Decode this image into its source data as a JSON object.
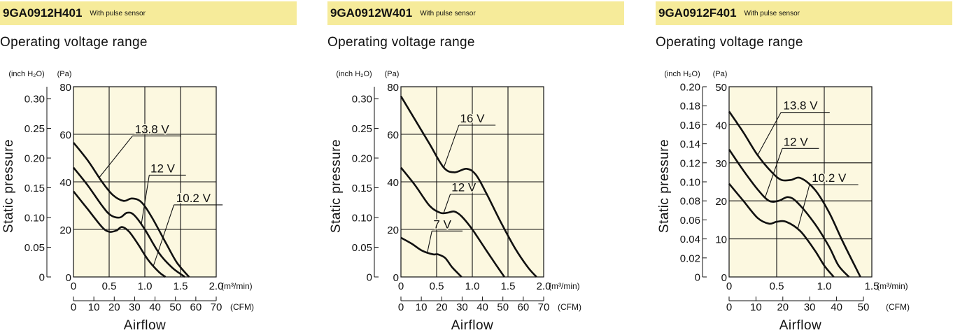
{
  "chart_data": [
    {
      "type": "line",
      "title": "9GA0912H401",
      "note": "With pulse sensor",
      "subtitle": "Operating voltage range",
      "ylabel": "Static pressure",
      "xlabel": "Airflow",
      "y_unit_inch": "(inch H₂O)",
      "y_unit_pa": "(Pa)",
      "x_unit_m3": "(m³/min)",
      "x_unit_cfm": "(CFM)",
      "xlim": [
        0,
        2.0
      ],
      "ylim_pa": [
        0,
        80
      ],
      "inch_max": 0.32,
      "x_ticks": [
        "0",
        "0.5",
        "1.0",
        "1.5",
        "2.0"
      ],
      "pa_ticks": [
        "0",
        "20",
        "40",
        "60",
        "80"
      ],
      "inch_ticks": [
        "0",
        "0.05",
        "0.10",
        "0.15",
        "0.20",
        "0.25",
        "0.30"
      ],
      "cfm_ticks": [
        "0",
        "10",
        "20",
        "30",
        "40",
        "50",
        "60",
        "70"
      ],
      "grid": true,
      "series": [
        {
          "name": "13.8 V",
          "x": [
            0,
            0.2,
            0.4,
            0.55,
            0.7,
            0.82,
            0.95,
            1.1,
            1.3,
            1.45,
            1.62
          ],
          "y": [
            56.5,
            49,
            40,
            34.5,
            32,
            33,
            31.5,
            25,
            14,
            6,
            0
          ],
          "label_at": [
            1.1,
            60.5
          ],
          "leader_to": 0.36
        },
        {
          "name": "12 V",
          "x": [
            0,
            0.2,
            0.4,
            0.52,
            0.65,
            0.75,
            0.85,
            1.0,
            1.2,
            1.38,
            1.56
          ],
          "y": [
            46,
            38.5,
            30,
            26,
            25,
            27,
            26,
            20,
            10,
            4,
            0
          ],
          "label_at": [
            1.25,
            44
          ],
          "leader_to": 0.95
        },
        {
          "name": "10.2 V",
          "x": [
            0,
            0.2,
            0.4,
            0.5,
            0.6,
            0.68,
            0.78,
            0.9,
            1.05,
            1.2,
            1.29
          ],
          "y": [
            36,
            28.5,
            21,
            19,
            19.5,
            21,
            19,
            14,
            7,
            2,
            0
          ],
          "label_at": [
            1.68,
            31.5
          ],
          "leader_to": 1.12
        }
      ]
    },
    {
      "type": "line",
      "title": "9GA0912W401",
      "note": "With pulse sensor",
      "subtitle": "Operating voltage range",
      "ylabel": "Static pressure",
      "xlabel": "Airflow",
      "y_unit_inch": "(inch H₂O)",
      "y_unit_pa": "(Pa)",
      "x_unit_m3": "(m³/min)",
      "x_unit_cfm": "(CFM)",
      "xlim": [
        0,
        2.0
      ],
      "ylim_pa": [
        0,
        80
      ],
      "inch_max": 0.32,
      "x_ticks": [
        "0",
        "0.5",
        "1.0",
        "1.5",
        "2.0"
      ],
      "pa_ticks": [
        "0",
        "20",
        "40",
        "60",
        "80"
      ],
      "inch_ticks": [
        "0",
        "0.05",
        "0.10",
        "0.15",
        "0.20",
        "0.25",
        "0.30"
      ],
      "cfm_ticks": [
        "0",
        "10",
        "20",
        "30",
        "40",
        "50",
        "60",
        "70"
      ],
      "grid": true,
      "series": [
        {
          "name": "16 V",
          "x": [
            0,
            0.2,
            0.4,
            0.6,
            0.75,
            0.92,
            1.05,
            1.2,
            1.4,
            1.6,
            1.78,
            1.9
          ],
          "y": [
            76,
            66,
            56,
            46,
            44,
            45.5,
            43,
            35,
            23,
            12,
            4,
            0
          ],
          "label_at": [
            1.0,
            65
          ],
          "leader_to": 0.6
        },
        {
          "name": "12 V",
          "x": [
            0,
            0.2,
            0.4,
            0.55,
            0.65,
            0.75,
            0.85,
            1.0,
            1.2,
            1.38,
            1.45
          ],
          "y": [
            46,
            38.5,
            30,
            27,
            27,
            27.5,
            25.5,
            20,
            11,
            3,
            0
          ],
          "label_at": [
            0.88,
            36
          ],
          "leader_to": 0.6
        },
        {
          "name": "7 V",
          "x": [
            0,
            0.15,
            0.3,
            0.45,
            0.52,
            0.62,
            0.72,
            0.85
          ],
          "y": [
            16.5,
            14,
            11,
            9.5,
            9.5,
            8,
            4,
            0
          ],
          "label_at": [
            0.58,
            20.5
          ],
          "leader_to": 0.37
        }
      ]
    },
    {
      "type": "line",
      "title": "9GA0912F401",
      "note": "With pulse sensor",
      "subtitle": "Operating voltage range",
      "ylabel": "Static pressure",
      "xlabel": "Airflow",
      "y_unit_inch": "(inch H₂O)",
      "y_unit_pa": "(Pa)",
      "x_unit_m3": "(m³/min)",
      "x_unit_cfm": "(CFM)",
      "xlim": [
        0,
        1.5
      ],
      "ylim_pa": [
        0,
        50
      ],
      "inch_max": 0.2,
      "x_ticks": [
        "0",
        "0.5",
        "1.0",
        "1.5"
      ],
      "pa_ticks": [
        "0",
        "10",
        "20",
        "30",
        "40",
        "50"
      ],
      "inch_ticks": [
        "0",
        "0.02",
        "0.04",
        "0.06",
        "0.08",
        "0.10",
        "0.12",
        "0.14",
        "0.16",
        "0.18",
        "0.20"
      ],
      "cfm_ticks": [
        "0",
        "10",
        "20",
        "30",
        "40",
        "50"
      ],
      "grid": true,
      "series": [
        {
          "name": "13.8 V",
          "x": [
            0,
            0.15,
            0.3,
            0.45,
            0.55,
            0.65,
            0.75,
            0.9,
            1.05,
            1.2,
            1.38
          ],
          "y": [
            43.5,
            38,
            32,
            27.5,
            25.5,
            25.5,
            26,
            23,
            17,
            9,
            0
          ],
          "label_at": [
            0.75,
            44
          ],
          "leader_to": 0.3
        },
        {
          "name": "12 V",
          "x": [
            0,
            0.15,
            0.3,
            0.42,
            0.52,
            0.62,
            0.72,
            0.9,
            1.05,
            1.15,
            1.26
          ],
          "y": [
            33.5,
            28,
            23,
            20,
            20,
            21,
            19.5,
            14,
            8,
            3,
            0
          ],
          "label_at": [
            0.7,
            34.5
          ],
          "leader_to": 0.38
        },
        {
          "name": "10.2 V",
          "x": [
            0,
            0.15,
            0.3,
            0.42,
            0.5,
            0.6,
            0.75,
            0.9,
            1.0,
            1.1
          ],
          "y": [
            24.5,
            20,
            15.5,
            14,
            14.5,
            14.5,
            12,
            7,
            3,
            0
          ],
          "label_at": [
            1.05,
            25
          ],
          "leader_to": 0.72
        }
      ]
    }
  ]
}
